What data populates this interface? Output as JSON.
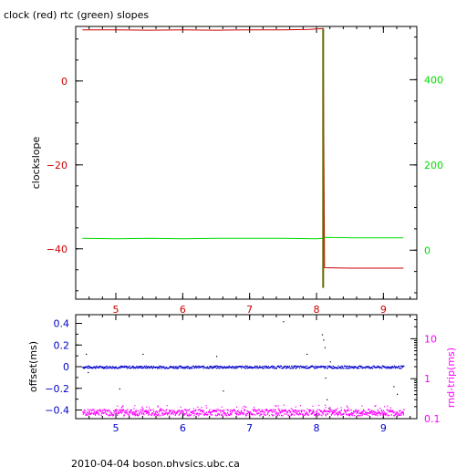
{
  "chart_data": [
    {
      "type": "line",
      "title": "clock (red) rtc (green) slopes",
      "xlabel": "",
      "ylabel": "clockslope",
      "y2label": "",
      "xlim": [
        4.4,
        9.5
      ],
      "ylim": [
        -52,
        13
      ],
      "y2lim": [
        -115,
        525
      ],
      "grid": false,
      "x_ticks": [
        5,
        6,
        7,
        8,
        9
      ],
      "y_ticks": [
        0,
        -20,
        -40
      ],
      "y2_ticks": [
        400,
        200,
        0
      ],
      "colors": {
        "clock": "#cc0000",
        "rtc": "#00dd00",
        "x_ticks": "#cc0000",
        "y_ticks": "#cc0000",
        "y2_ticks": "#00dd00",
        "spike": "#6b6b00"
      },
      "series": [
        {
          "name": "clock",
          "axis": "left",
          "color": "#cc0000",
          "x": [
            4.5,
            5.0,
            5.5,
            6.0,
            6.5,
            7.0,
            7.5,
            7.9,
            8.1,
            8.12,
            8.5,
            9.0,
            9.3
          ],
          "y": [
            12.2,
            12.2,
            12.1,
            12.2,
            12.1,
            12.2,
            12.2,
            12.3,
            12.5,
            -44.5,
            -44.6,
            -44.6,
            -44.6
          ]
        },
        {
          "name": "rtc",
          "axis": "right",
          "color": "#00dd00",
          "x": [
            4.5,
            5.0,
            5.5,
            6.0,
            6.5,
            7.0,
            7.5,
            8.0,
            8.1,
            8.12,
            8.5,
            9.0,
            9.3
          ],
          "y": [
            28,
            27,
            28,
            27,
            28,
            28,
            28,
            27,
            28,
            30,
            29,
            29,
            29
          ]
        },
        {
          "name": "transition",
          "axis": "left",
          "color": "#6b6b00",
          "x": [
            8.1,
            8.1
          ],
          "y": [
            12.5,
            -49.3
          ]
        }
      ]
    },
    {
      "type": "scatter",
      "title": "",
      "xlabel": "",
      "ylabel": "offset(ms)",
      "y2label": "rnd-trip(ms)",
      "xlim": [
        4.4,
        9.5
      ],
      "ylim": [
        -0.48,
        0.48
      ],
      "y2scale": "log",
      "y2lim": [
        0.1,
        40
      ],
      "x_ticks": [
        5,
        6,
        7,
        8,
        9
      ],
      "y_ticks": [
        0.4,
        0.2,
        0,
        -0.2,
        -0.4
      ],
      "y2_ticks": [
        10,
        1,
        0.1
      ],
      "colors": {
        "offset": "#0000cc",
        "rnd_trip": "#ff00ff",
        "outliers": "#000000",
        "x_ticks": "#0000cc",
        "y_ticks": "#0000cc",
        "y2_ticks": "#ff00ff"
      },
      "series": [
        {
          "name": "offset",
          "axis": "left",
          "color": "#0000cc",
          "x_range": [
            4.5,
            9.3
          ],
          "baseline": 0.0,
          "spread": 0.012
        },
        {
          "name": "rnd-trip",
          "axis": "right",
          "color": "#ff00ff",
          "x_range": [
            4.5,
            9.3
          ],
          "baseline": 0.15,
          "spread": 0.02
        },
        {
          "name": "outliers",
          "axis": "left",
          "color": "#000000",
          "x": [
            4.55,
            4.58,
            5.05,
            5.4,
            6.5,
            6.6,
            7.5,
            7.85,
            8.08,
            8.1,
            8.12,
            8.13,
            8.15,
            8.18,
            8.2,
            9.15,
            9.2
          ],
          "y": [
            0.12,
            -0.05,
            -0.2,
            0.12,
            0.1,
            -0.22,
            0.42,
            0.12,
            0.3,
            0.25,
            0.18,
            -0.1,
            -0.3,
            -0.38,
            0.05,
            -0.18,
            -0.25
          ]
        }
      ]
    }
  ],
  "footer": {
    "caption": "2010-04-04 boson.physics.ubc.ca"
  }
}
